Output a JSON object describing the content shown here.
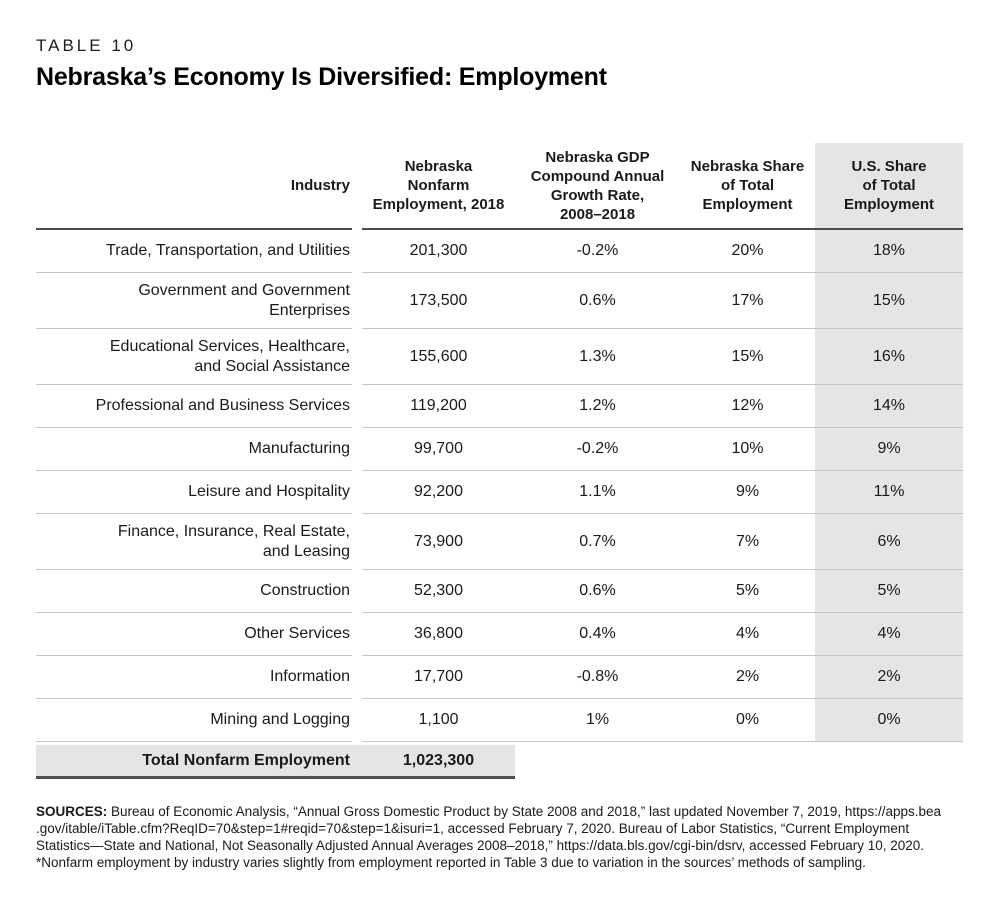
{
  "page": {
    "eyebrow": "TABLE 10",
    "title": "Nebraska’s Economy Is Diversified: Employment"
  },
  "colors": {
    "shade_gray": "#e5e5e5",
    "rule_dark": "#4d4d4d",
    "rule_light": "#c6c6c6",
    "text": "#1a1a1a"
  },
  "table": {
    "headers": [
      "Industry",
      "Nebraska\nNonfarm\nEmployment, 2018",
      "Nebraska GDP\nCompound Annual\nGrowth Rate,\n2008–2018",
      "Nebraska Share\nof Total\nEmployment",
      "U.S. Share\nof Total\nEmployment"
    ],
    "rows": [
      {
        "industry": "Trade, Transportation, and Utilities",
        "employment": "201,300",
        "growth": "-0.2%",
        "ne_share": "20%",
        "us_share": "18%"
      },
      {
        "industry": "Government and Government\nEnterprises",
        "employment": "173,500",
        "growth": "0.6%",
        "ne_share": "17%",
        "us_share": "15%"
      },
      {
        "industry": "Educational Services, Healthcare,\nand Social Assistance",
        "employment": "155,600",
        "growth": "1.3%",
        "ne_share": "15%",
        "us_share": "16%"
      },
      {
        "industry": "Professional and Business Services",
        "employment": "119,200",
        "growth": "1.2%",
        "ne_share": "12%",
        "us_share": "14%"
      },
      {
        "industry": "Manufacturing",
        "employment": "99,700",
        "growth": "-0.2%",
        "ne_share": "10%",
        "us_share": "9%"
      },
      {
        "industry": "Leisure and Hospitality",
        "employment": "92,200",
        "growth": "1.1%",
        "ne_share": "9%",
        "us_share": "11%"
      },
      {
        "industry": "Finance, Insurance, Real Estate,\nand Leasing",
        "employment": "73,900",
        "growth": "0.7%",
        "ne_share": "7%",
        "us_share": "6%"
      },
      {
        "industry": "Construction",
        "employment": "52,300",
        "growth": "0.6%",
        "ne_share": "5%",
        "us_share": "5%"
      },
      {
        "industry": "Other Services",
        "employment": "36,800",
        "growth": "0.4%",
        "ne_share": "4%",
        "us_share": "4%"
      },
      {
        "industry": "Information",
        "employment": "17,700",
        "growth": "-0.8%",
        "ne_share": "2%",
        "us_share": "2%"
      },
      {
        "industry": "Mining and Logging",
        "employment": "1,100",
        "growth": "1%",
        "ne_share": "0%",
        "us_share": "0%"
      }
    ],
    "total": {
      "label": "Total Nonfarm Employment",
      "value": "1,023,300"
    }
  },
  "footer": {
    "sources_label": "SOURCES:",
    "line1_rest": " Bureau of Economic Analysis, “Annual Gross Domestic Product by State 2008 and 2018,” last updated November 7, 2019, https://apps.bea",
    "line2": ".gov/itable/iTable.cfm?ReqID=70&step=1#reqid=70&step=1&isuri=1, accessed February 7, 2020. Bureau of Labor Statistics, “Current Employment",
    "line3": "Statistics—State and National, Not Seasonally Adjusted Annual Averages 2008–2018,” https://data.bls.gov/cgi-bin/dsrv, accessed February 10, 2020.",
    "line4": "*Nonfarm employment by industry varies slightly from employment reported in Table 3 due to variation in the sources’ methods of sampling."
  }
}
